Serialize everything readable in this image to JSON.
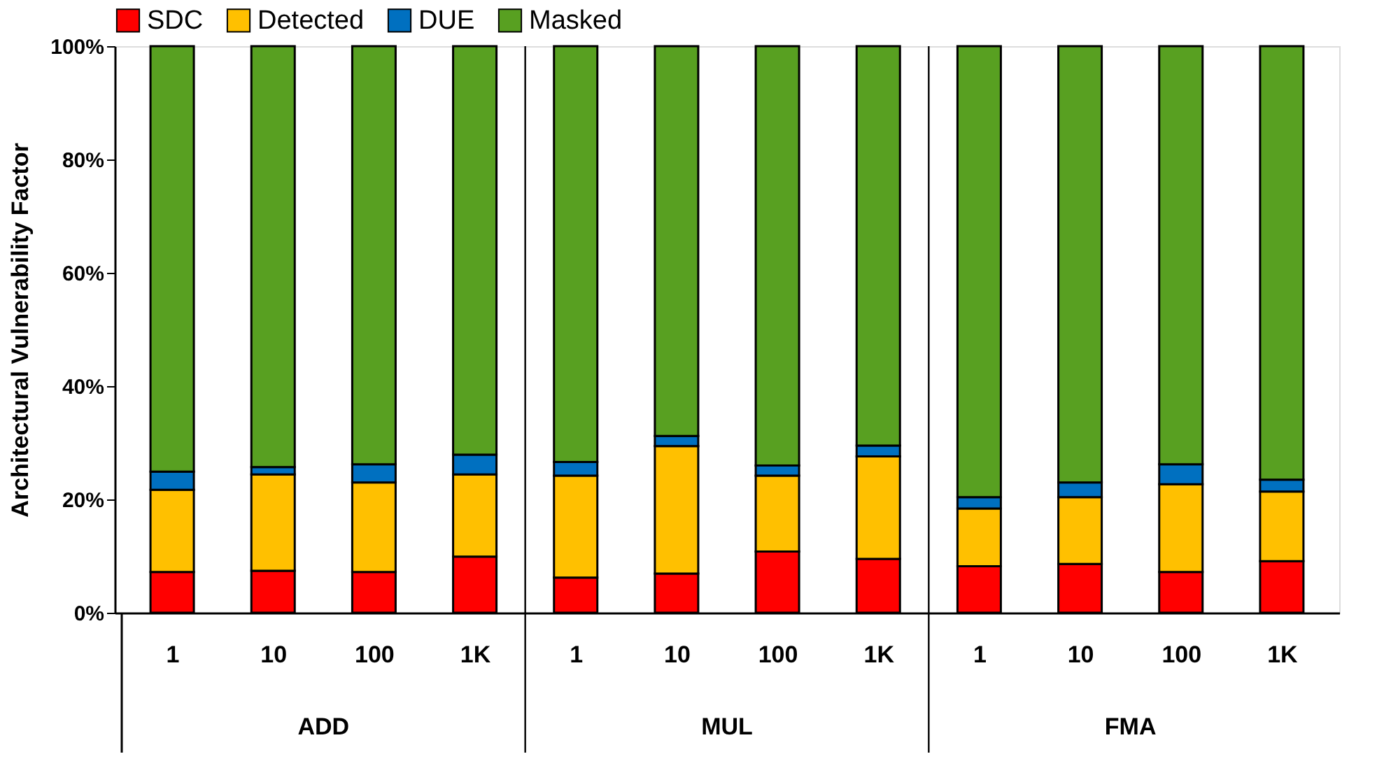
{
  "chart_data": {
    "type": "bar",
    "stacked": true,
    "ylabel": "Architectural Vulnerability Factor",
    "categories": [
      "1",
      "10",
      "100",
      "1K",
      "1",
      "10",
      "100",
      "1K",
      "1",
      "10",
      "100",
      "1K"
    ],
    "annotations": [
      "ADD",
      "MUL",
      "FMA"
    ],
    "series": [
      {
        "name": "SDC",
        "color": "#ff0000",
        "values": [
          7.2,
          7.4,
          7.2,
          9.9,
          6.2,
          6.9,
          10.8,
          9.5,
          8.2,
          8.6,
          7.2,
          9.1
        ]
      },
      {
        "name": "Detected",
        "color": "#ffc000",
        "values": [
          14.5,
          17.0,
          15.8,
          14.5,
          18.0,
          22.5,
          13.4,
          18.1,
          10.2,
          11.8,
          15.5,
          12.3
        ]
      },
      {
        "name": "DUE",
        "color": "#0070c0",
        "values": [
          3.2,
          1.3,
          3.2,
          3.5,
          2.4,
          1.8,
          1.8,
          1.9,
          2.0,
          2.6,
          3.5,
          2.1
        ]
      },
      {
        "name": "Masked",
        "color": "#58a021",
        "values": [
          75.1,
          74.3,
          73.8,
          72.1,
          73.4,
          68.8,
          74.0,
          70.5,
          79.6,
          77.0,
          73.8,
          76.5
        ]
      }
    ],
    "ylim": [
      0,
      100
    ],
    "yticks": [
      {
        "value": 0,
        "label": "0%"
      },
      {
        "value": 20,
        "label": "20%"
      },
      {
        "value": 40,
        "label": "40%"
      },
      {
        "value": 60,
        "label": "60%"
      },
      {
        "value": 80,
        "label": "80%"
      },
      {
        "value": 100,
        "label": "100%"
      }
    ],
    "grid": false,
    "legend": "top"
  }
}
